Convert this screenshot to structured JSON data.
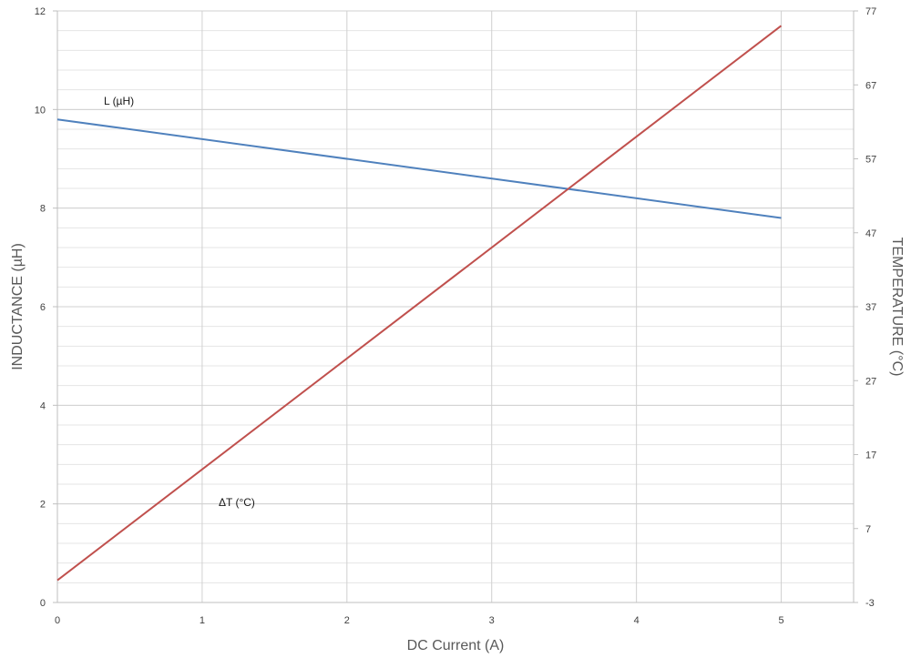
{
  "chart_data": {
    "type": "line",
    "xlabel": "DC Current (A)",
    "ylabel": "INDUCTANCE (µH)",
    "y2label": "TEMPERATURE (°C)",
    "xlim": [
      0,
      5.5
    ],
    "ylim": [
      0,
      12
    ],
    "y2lim": [
      -3,
      77
    ],
    "x_ticks": [
      0,
      1,
      2,
      3,
      4,
      5
    ],
    "y_ticks": [
      0,
      2,
      4,
      6,
      8,
      10,
      12
    ],
    "y2_ticks": [
      -3,
      7,
      17,
      27,
      37,
      47,
      57,
      67,
      77
    ],
    "grid": true,
    "legend": "none",
    "series": [
      {
        "name": "L (µH)",
        "axis": "left",
        "color": "#4f81bd",
        "x": [
          0,
          5
        ],
        "y": [
          9.8,
          7.8
        ]
      },
      {
        "name": "ΔT (°C)",
        "axis": "right",
        "color": "#c0504d",
        "x": [
          0,
          5
        ],
        "y": [
          0,
          75
        ]
      }
    ]
  }
}
